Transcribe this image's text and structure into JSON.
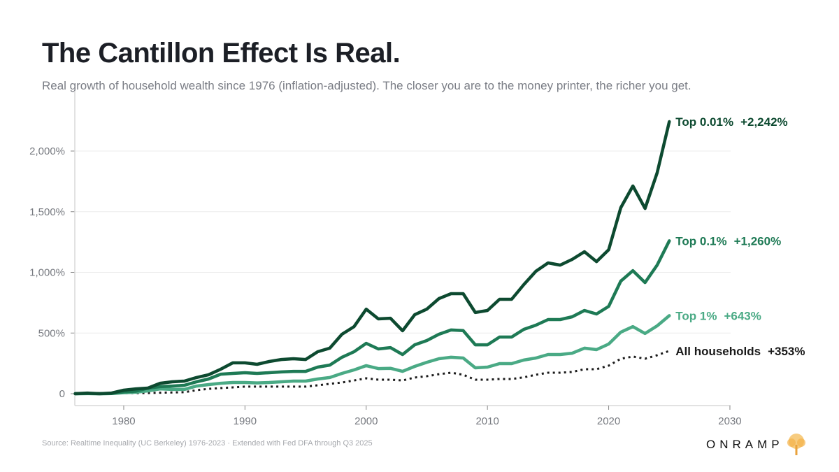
{
  "brand": "ONRAMP",
  "source": "Source: Realtime Inequality (UC Berkeley) 1976-2023 · Extended with Fed DFA through Q3 2025",
  "chart_data": {
    "type": "line",
    "title": "The Cantillon Effect Is Real.",
    "subtitle": "Real growth of household wealth since 1976 (inflation-adjusted). The closer you are to the money printer, the richer you get.",
    "xlabel": "",
    "ylabel": "",
    "xlim": [
      1976,
      2030
    ],
    "ylim": [
      -50,
      2350
    ],
    "xticks": [
      1980,
      1990,
      2000,
      2010,
      2020,
      2030
    ],
    "yticks": [
      0,
      500,
      1000,
      1500,
      2000
    ],
    "ytick_labels": [
      "0",
      "500%",
      "1,000%",
      "1,500%",
      "2,000%"
    ],
    "grid": "horizontal",
    "legend": "inline-right",
    "x": [
      1976,
      1977,
      1978,
      1979,
      1980,
      1981,
      1982,
      1983,
      1984,
      1985,
      1986,
      1987,
      1988,
      1989,
      1990,
      1991,
      1992,
      1993,
      1994,
      1995,
      1996,
      1997,
      1998,
      1999,
      2000,
      2001,
      2002,
      2003,
      2004,
      2005,
      2006,
      2007,
      2008,
      2009,
      2010,
      2011,
      2012,
      2013,
      2014,
      2015,
      2016,
      2017,
      2018,
      2019,
      2020,
      2021,
      2022,
      2023,
      2024,
      2025
    ],
    "series": [
      {
        "name": "Top 0.01%",
        "end_label": "+2,242%",
        "color": "#0d4a30",
        "style": "solid",
        "values": [
          0,
          5,
          0,
          5,
          29,
          40,
          46,
          86,
          98,
          104,
          133,
          156,
          202,
          254,
          254,
          242,
          265,
          282,
          288,
          282,
          346,
          375,
          490,
          553,
          697,
          617,
          622,
          519,
          651,
          697,
          784,
          824,
          824,
          669,
          686,
          778,
          778,
          899,
          1009,
          1078,
          1060,
          1107,
          1170,
          1089,
          1187,
          1533,
          1712,
          1527,
          1821,
          2242
        ]
      },
      {
        "name": "Top 0.1%",
        "end_label": "+1,260%",
        "color": "#1e7a55",
        "style": "solid",
        "values": [
          0,
          2,
          0,
          2,
          15,
          20,
          46,
          58,
          63,
          69,
          98,
          121,
          161,
          167,
          173,
          167,
          173,
          179,
          184,
          184,
          219,
          236,
          300,
          346,
          415,
          369,
          380,
          323,
          403,
          438,
          490,
          525,
          520,
          403,
          403,
          467,
          467,
          530,
          565,
          611,
          611,
          634,
          686,
          657,
          720,
          928,
          1014,
          916,
          1060,
          1260
        ]
      },
      {
        "name": "Top 1%",
        "end_label": "+643%",
        "color": "#4aaa85",
        "style": "solid",
        "values": [
          0,
          1,
          0,
          1,
          8,
          12,
          23,
          40,
          35,
          35,
          63,
          75,
          86,
          92,
          92,
          89,
          92,
          98,
          104,
          104,
          121,
          133,
          167,
          196,
          231,
          207,
          209,
          184,
          225,
          259,
          288,
          300,
          294,
          213,
          219,
          248,
          248,
          277,
          294,
          323,
          323,
          334,
          375,
          363,
          409,
          507,
          553,
          496,
          559,
          643
        ]
      },
      {
        "name": "All households",
        "end_label": "+353%",
        "color": "#1a1a1a",
        "style": "dotted",
        "values": [
          0,
          0,
          0,
          0,
          5,
          5,
          5,
          8,
          10,
          12,
          29,
          40,
          46,
          52,
          58,
          58,
          58,
          58,
          58,
          58,
          69,
          81,
          92,
          109,
          127,
          115,
          115,
          109,
          133,
          144,
          161,
          173,
          156,
          115,
          115,
          121,
          121,
          135,
          156,
          173,
          173,
          179,
          202,
          202,
          231,
          288,
          306,
          288,
          317,
          353
        ]
      }
    ]
  }
}
